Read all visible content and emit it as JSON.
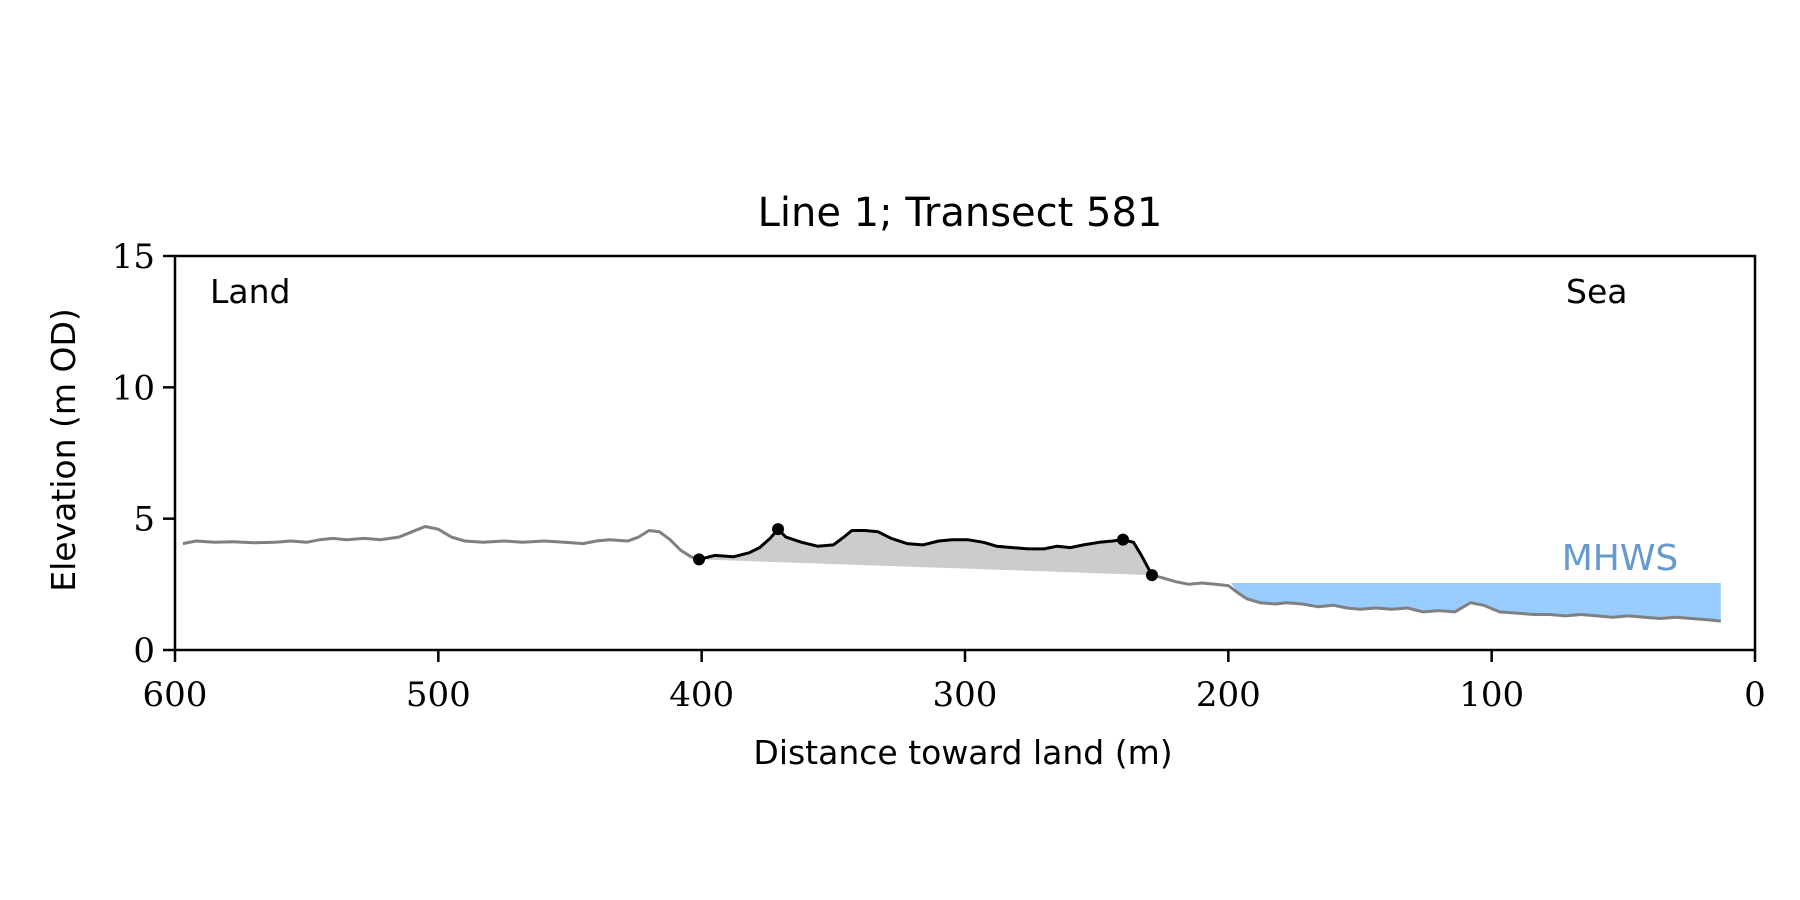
{
  "chart_data": {
    "type": "area",
    "title": "Line 1; Transect 581",
    "xlabel": "Distance toward land (m)",
    "ylabel": "Elevation (m OD)",
    "xlim": [
      600,
      0
    ],
    "ylim": [
      0,
      15
    ],
    "x_ticks": [
      600,
      500,
      400,
      300,
      200,
      100,
      0
    ],
    "y_ticks": [
      0,
      5,
      10,
      15
    ],
    "grid": false,
    "annotations": {
      "land": "Land",
      "sea": "Sea",
      "mhws": "MHWS"
    },
    "mhws": {
      "elevation": 2.55,
      "x_range": [
        199,
        13
      ]
    },
    "colors": {
      "profile": "#808080",
      "dune": "#000000",
      "dune_fill": "#cccccc",
      "water": "#99ccff",
      "mhws_text": "#6699cc"
    },
    "series": [
      {
        "points": [
          [
            597,
            4.05
          ],
          [
            592,
            4.15
          ],
          [
            585,
            4.1
          ],
          [
            578,
            4.12
          ],
          [
            570,
            4.08
          ],
          [
            562,
            4.1
          ],
          [
            556,
            4.15
          ],
          [
            550,
            4.1
          ],
          [
            545,
            4.2
          ],
          [
            540,
            4.25
          ],
          [
            535,
            4.2
          ],
          [
            528,
            4.25
          ],
          [
            522,
            4.2
          ],
          [
            515,
            4.3
          ],
          [
            510,
            4.5
          ],
          [
            505,
            4.7
          ],
          [
            500,
            4.6
          ],
          [
            495,
            4.3
          ],
          [
            490,
            4.15
          ],
          [
            483,
            4.1
          ],
          [
            475,
            4.15
          ],
          [
            468,
            4.1
          ],
          [
            460,
            4.15
          ],
          [
            452,
            4.1
          ],
          [
            445,
            4.05
          ],
          [
            440,
            4.15
          ],
          [
            435,
            4.2
          ],
          [
            428,
            4.15
          ],
          [
            424,
            4.3
          ],
          [
            420,
            4.55
          ],
          [
            416,
            4.5
          ],
          [
            412,
            4.2
          ],
          [
            408,
            3.8
          ],
          [
            404,
            3.55
          ],
          [
            401,
            3.45
          ]
        ]
      },
      {
        "points": [
          [
            401,
            3.45
          ],
          [
            395,
            3.6
          ],
          [
            388,
            3.55
          ],
          [
            382,
            3.7
          ],
          [
            378,
            3.9
          ],
          [
            374,
            4.25
          ],
          [
            371,
            4.6
          ],
          [
            368,
            4.3
          ],
          [
            362,
            4.1
          ],
          [
            356,
            3.95
          ],
          [
            350,
            4.0
          ],
          [
            346,
            4.3
          ],
          [
            343,
            4.55
          ],
          [
            338,
            4.55
          ],
          [
            333,
            4.5
          ],
          [
            328,
            4.25
          ],
          [
            322,
            4.05
          ],
          [
            316,
            4.0
          ],
          [
            310,
            4.15
          ],
          [
            305,
            4.2
          ],
          [
            299,
            4.2
          ],
          [
            293,
            4.1
          ],
          [
            288,
            3.95
          ],
          [
            282,
            3.9
          ],
          [
            276,
            3.85
          ],
          [
            270,
            3.85
          ],
          [
            265,
            3.95
          ],
          [
            260,
            3.9
          ],
          [
            255,
            4.0
          ],
          [
            249,
            4.1
          ],
          [
            244,
            4.15
          ],
          [
            240,
            4.2
          ],
          [
            236,
            4.1
          ],
          [
            233,
            3.6
          ],
          [
            229,
            2.85
          ]
        ]
      },
      {
        "points": [
          [
            229,
            2.85
          ],
          [
            225,
            2.75
          ],
          [
            220,
            2.6
          ],
          [
            215,
            2.5
          ],
          [
            210,
            2.55
          ],
          [
            205,
            2.5
          ],
          [
            200,
            2.45
          ],
          [
            196,
            2.15
          ],
          [
            193,
            1.95
          ],
          [
            188,
            1.8
          ],
          [
            182,
            1.75
          ],
          [
            178,
            1.8
          ],
          [
            172,
            1.75
          ],
          [
            166,
            1.65
          ],
          [
            160,
            1.7
          ],
          [
            155,
            1.6
          ],
          [
            150,
            1.55
          ],
          [
            144,
            1.6
          ],
          [
            138,
            1.55
          ],
          [
            132,
            1.6
          ],
          [
            126,
            1.45
          ],
          [
            120,
            1.5
          ],
          [
            114,
            1.45
          ],
          [
            108,
            1.8
          ],
          [
            103,
            1.7
          ],
          [
            97,
            1.45
          ],
          [
            90,
            1.4
          ],
          [
            84,
            1.35
          ],
          [
            78,
            1.35
          ],
          [
            72,
            1.3
          ],
          [
            66,
            1.35
          ],
          [
            60,
            1.3
          ],
          [
            54,
            1.25
          ],
          [
            48,
            1.3
          ],
          [
            42,
            1.25
          ],
          [
            36,
            1.2
          ],
          [
            30,
            1.25
          ],
          [
            24,
            1.2
          ],
          [
            18,
            1.15
          ],
          [
            13,
            1.1
          ]
        ]
      }
    ],
    "dune_markers": [
      [
        401,
        3.45
      ],
      [
        371,
        4.6
      ],
      [
        240,
        4.2
      ],
      [
        229,
        2.85
      ]
    ],
    "dune_base": [
      [
        401,
        3.45
      ],
      [
        229,
        2.85
      ]
    ]
  }
}
